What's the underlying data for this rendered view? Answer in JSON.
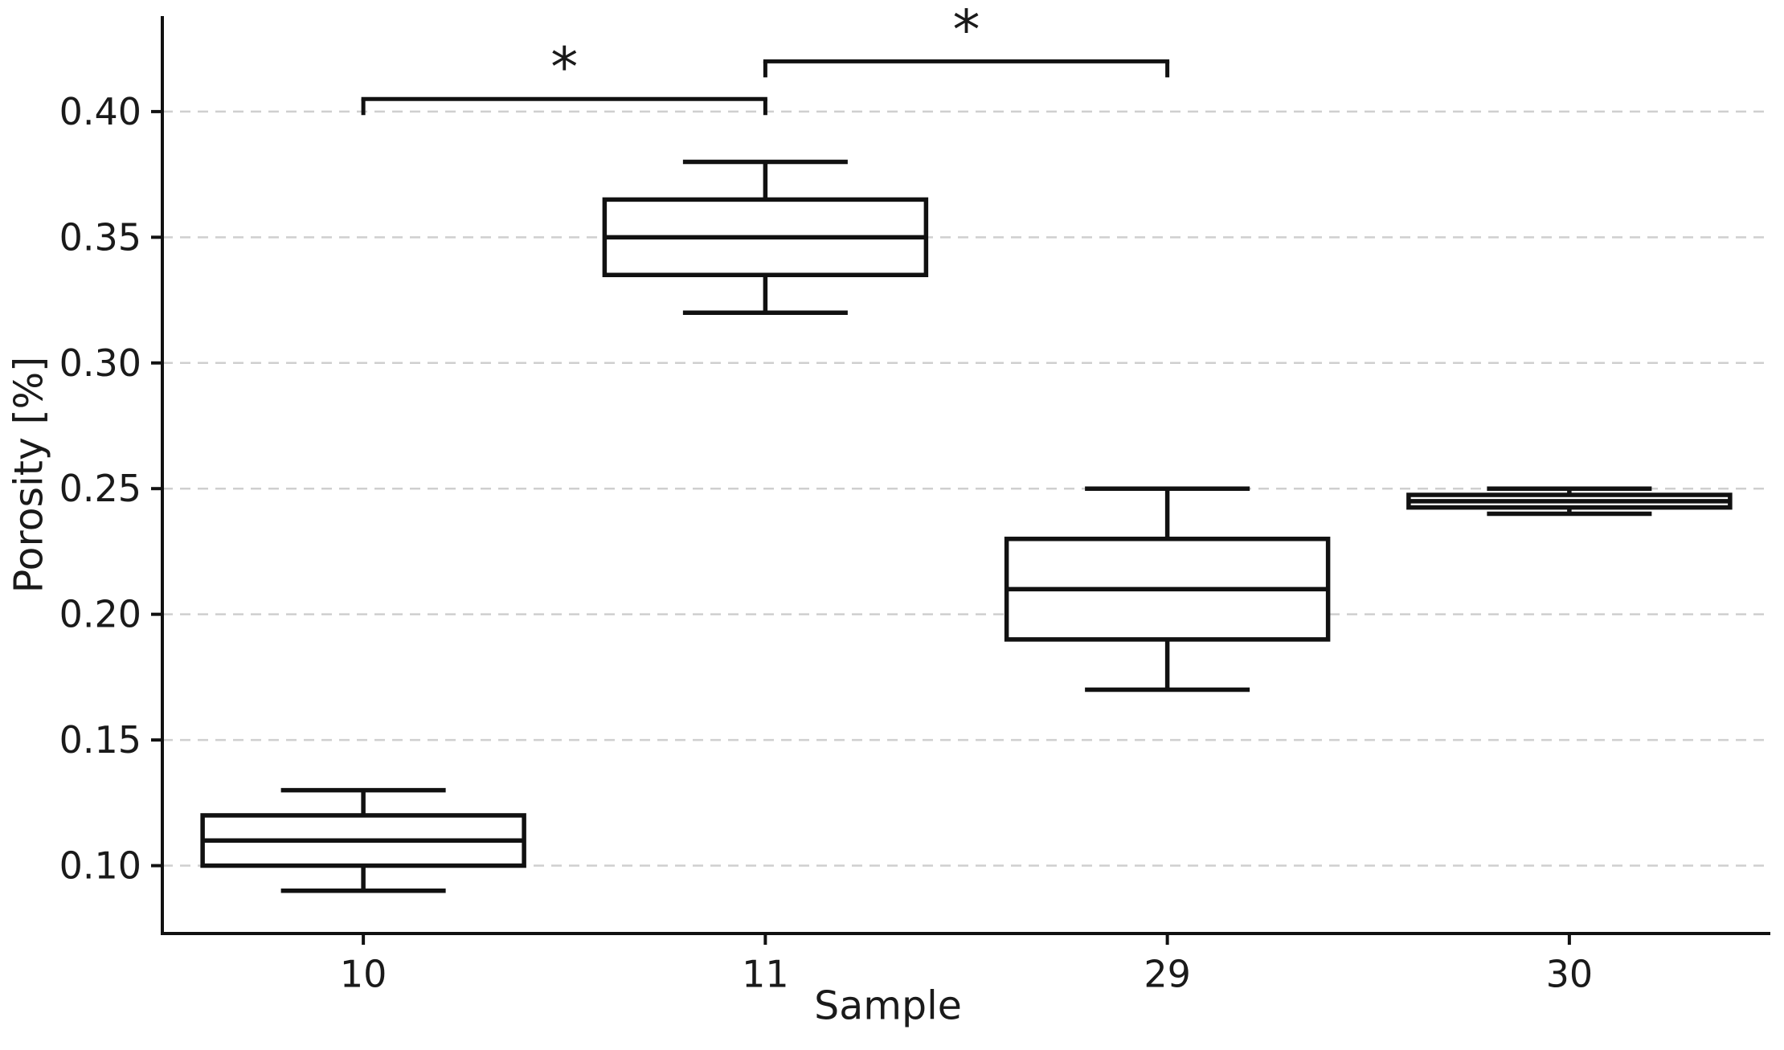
{
  "chart_data": {
    "type": "box",
    "title": "",
    "xlabel": "Sample",
    "ylabel": "Porosity [%]",
    "categories": [
      "10",
      "11",
      "29",
      "30"
    ],
    "boxes": [
      {
        "category": "10",
        "whisker_low": 0.09,
        "q1": 0.1,
        "median": 0.11,
        "q3": 0.12,
        "whisker_high": 0.13
      },
      {
        "category": "11",
        "whisker_low": 0.32,
        "q1": 0.335,
        "median": 0.35,
        "q3": 0.365,
        "whisker_high": 0.38
      },
      {
        "category": "29",
        "whisker_low": 0.17,
        "q1": 0.19,
        "median": 0.21,
        "q3": 0.23,
        "whisker_high": 0.25
      },
      {
        "category": "30",
        "whisker_low": 0.24,
        "q1": 0.2425,
        "median": 0.245,
        "q3": 0.2475,
        "whisker_high": 0.25
      }
    ],
    "yticks": [
      "0.10",
      "0.15",
      "0.20",
      "0.25",
      "0.30",
      "0.35",
      "0.40"
    ],
    "ylim": [
      0.073,
      0.438
    ],
    "grid": "horizontal-dashed",
    "legend": "none",
    "significance_brackets": [
      {
        "from": "10",
        "to": "11",
        "label": "*",
        "y": 0.405
      },
      {
        "from": "11",
        "to": "29",
        "label": "*",
        "y": 0.42
      }
    ],
    "colors": {
      "line": "#111111",
      "text": "#1a1a1a",
      "grid": "#cfcfcf",
      "box_fill": "#ffffff",
      "background": "#ffffff"
    }
  }
}
